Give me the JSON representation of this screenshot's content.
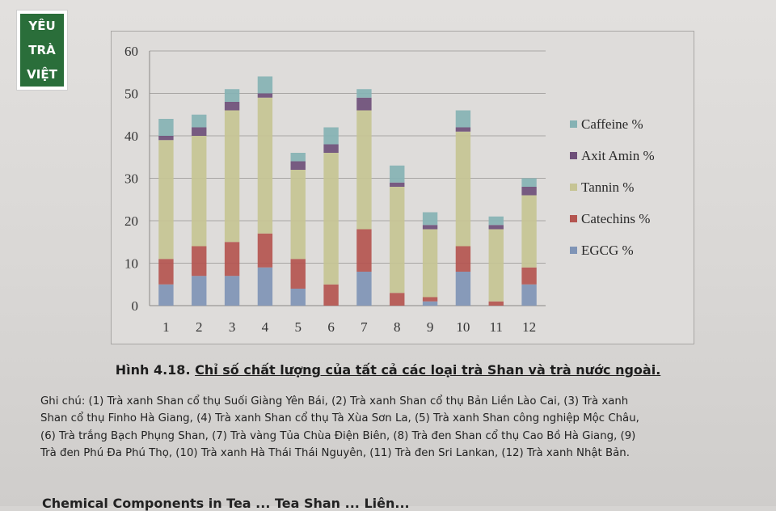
{
  "logo": {
    "lines": [
      "YÊU",
      "TRÀ",
      "VIỆT"
    ]
  },
  "chart_data": {
    "type": "bar",
    "stacked": true,
    "categories": [
      "1",
      "2",
      "3",
      "4",
      "5",
      "6",
      "7",
      "8",
      "9",
      "10",
      "11",
      "12"
    ],
    "ylim": [
      0,
      60
    ],
    "yticks": [
      "0",
      "10",
      "20",
      "30",
      "40",
      "50",
      "60"
    ],
    "grid": true,
    "legend_position": "right",
    "series": [
      {
        "name": "EGCG %",
        "color": "#7f94b6",
        "values": [
          5,
          7,
          7,
          9,
          4,
          0,
          8,
          0,
          1,
          8,
          0,
          5
        ]
      },
      {
        "name": "Catechins %",
        "color": "#b45550",
        "values": [
          6,
          7,
          8,
          8,
          7,
          5,
          10,
          3,
          1,
          6,
          1,
          4
        ]
      },
      {
        "name": "Tannin %",
        "color": "#c6c494",
        "values": [
          28,
          26,
          31,
          32,
          21,
          31,
          28,
          25,
          16,
          27,
          17,
          17
        ]
      },
      {
        "name": "Axit Amin %",
        "color": "#6e4f79",
        "values": [
          1,
          2,
          2,
          1,
          2,
          2,
          3,
          1,
          1,
          1,
          1,
          2
        ]
      },
      {
        "name": "Caffeine %",
        "color": "#86b2b4",
        "values": [
          4,
          3,
          3,
          4,
          2,
          4,
          2,
          4,
          3,
          4,
          2,
          2
        ]
      }
    ]
  },
  "caption": {
    "prefix": "Hình 4.18. ",
    "text": "Chỉ số chất lượng của tất cả các loại trà Shan và trà nước ngoài."
  },
  "note_lines": [
    "Ghi chú: (1) Trà xanh Shan cổ thụ Suối Giàng Yên Bái, (2) Trà xanh Shan cổ thụ Bản Liền Lào Cai, (3) Trà xanh",
    "Shan cổ thụ Finho Hà Giang, (4) Trà xanh Shan cổ thụ Tà Xùa Sơn La, (5) Trà xanh Shan công nghiệp Mộc Châu,",
    "(6) Trà trắng Bạch Phụng Shan, (7) Trà vàng Tủa Chùa Điện Biên, (8) Trà đen Shan cổ thụ Cao Bồ Hà Giang, (9)",
    "Trà đen Phú Đa Phú Thọ, (10) Trà xanh Hà Thái Thái Nguyên, (11) Trà đen Sri Lankan, (12) Trà xanh Nhật Bản."
  ],
  "bottom_cut_text": "Chemical Components in Tea ... Tea Shan ... Liên..."
}
